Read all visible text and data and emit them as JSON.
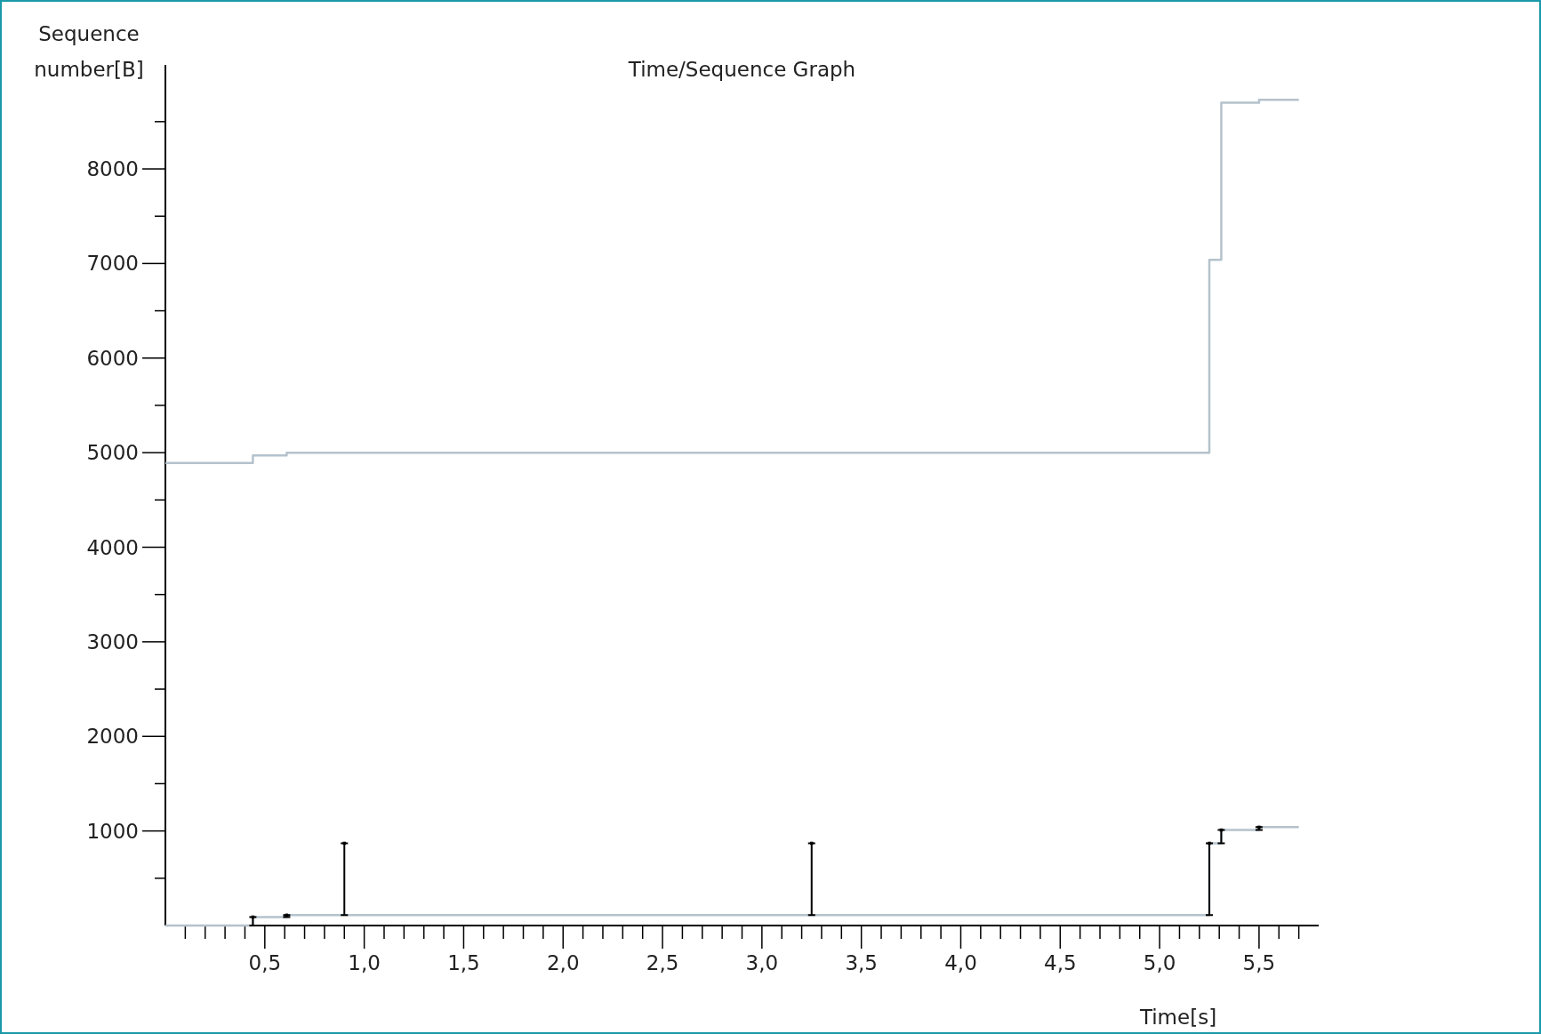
{
  "chart_data": {
    "type": "step",
    "title": "Time/Sequence Graph",
    "xlabel": "Time[s]",
    "ylabel": "Sequence number[B]",
    "xlim": [
      0,
      5.8
    ],
    "ylim": [
      0,
      9100
    ],
    "xticks": [
      {
        "value": 0.1,
        "label": null
      },
      {
        "value": 0.2,
        "label": null
      },
      {
        "value": 0.3,
        "label": null
      },
      {
        "value": 0.4,
        "label": null
      },
      {
        "value": 0.5,
        "label": "0,5"
      },
      {
        "value": 0.6,
        "label": null
      },
      {
        "value": 0.7,
        "label": null
      },
      {
        "value": 0.8,
        "label": null
      },
      {
        "value": 0.9,
        "label": null
      },
      {
        "value": 1.0,
        "label": "1,0"
      },
      {
        "value": 1.1,
        "label": null
      },
      {
        "value": 1.2,
        "label": null
      },
      {
        "value": 1.3,
        "label": null
      },
      {
        "value": 1.4,
        "label": null
      },
      {
        "value": 1.5,
        "label": "1,5"
      },
      {
        "value": 1.6,
        "label": null
      },
      {
        "value": 1.7,
        "label": null
      },
      {
        "value": 1.8,
        "label": null
      },
      {
        "value": 1.9,
        "label": null
      },
      {
        "value": 2.0,
        "label": "2,0"
      },
      {
        "value": 2.1,
        "label": null
      },
      {
        "value": 2.2,
        "label": null
      },
      {
        "value": 2.3,
        "label": null
      },
      {
        "value": 2.4,
        "label": null
      },
      {
        "value": 2.5,
        "label": "2,5"
      },
      {
        "value": 2.6,
        "label": null
      },
      {
        "value": 2.7,
        "label": null
      },
      {
        "value": 2.8,
        "label": null
      },
      {
        "value": 2.9,
        "label": null
      },
      {
        "value": 3.0,
        "label": "3,0"
      },
      {
        "value": 3.1,
        "label": null
      },
      {
        "value": 3.2,
        "label": null
      },
      {
        "value": 3.3,
        "label": null
      },
      {
        "value": 3.4,
        "label": null
      },
      {
        "value": 3.5,
        "label": "3,5"
      },
      {
        "value": 3.6,
        "label": null
      },
      {
        "value": 3.7,
        "label": null
      },
      {
        "value": 3.8,
        "label": null
      },
      {
        "value": 3.9,
        "label": null
      },
      {
        "value": 4.0,
        "label": "4,0"
      },
      {
        "value": 4.1,
        "label": null
      },
      {
        "value": 4.2,
        "label": null
      },
      {
        "value": 4.3,
        "label": null
      },
      {
        "value": 4.4,
        "label": null
      },
      {
        "value": 4.5,
        "label": "4,5"
      },
      {
        "value": 4.6,
        "label": null
      },
      {
        "value": 4.7,
        "label": null
      },
      {
        "value": 4.8,
        "label": null
      },
      {
        "value": 4.9,
        "label": null
      },
      {
        "value": 5.0,
        "label": "5,0"
      },
      {
        "value": 5.1,
        "label": null
      },
      {
        "value": 5.2,
        "label": null
      },
      {
        "value": 5.3,
        "label": null
      },
      {
        "value": 5.4,
        "label": null
      },
      {
        "value": 5.5,
        "label": "5,5"
      },
      {
        "value": 5.6,
        "label": null
      },
      {
        "value": 5.7,
        "label": null
      }
    ],
    "yticks": [
      {
        "value": 500,
        "label": null
      },
      1000,
      {
        "value": 1500,
        "label": null
      },
      2000,
      {
        "value": 2500,
        "label": null
      },
      3000,
      {
        "value": 3500,
        "label": null
      },
      4000,
      {
        "value": 4500,
        "label": null
      },
      5000,
      {
        "value": 5500,
        "label": null
      },
      6000,
      {
        "value": 6500,
        "label": null
      },
      7000,
      {
        "value": 7500,
        "label": null
      },
      8000,
      {
        "value": 8500,
        "label": null
      }
    ],
    "series": [
      {
        "color": "#b4c2cc",
        "x": [
          0,
          0.44,
          0.61,
          5.25,
          5.31,
          5.5,
          5.7
        ],
        "values": [
          4890,
          4970,
          5000,
          7040,
          8700,
          8730,
          8730
        ]
      },
      {
        "color": "#b4c2cc",
        "x": [
          0,
          0.44,
          0.61,
          5.25,
          5.31,
          5.5,
          5.7
        ],
        "values": [
          0,
          90,
          110,
          870,
          1010,
          1040,
          1040
        ]
      },
      {
        "type": "scatter",
        "color": "#000000",
        "marker": "square",
        "x": [
          0.44,
          0.61,
          0.9,
          3.25,
          5.25,
          5.31,
          5.5
        ],
        "values": [
          90,
          110,
          870,
          870,
          870,
          1010,
          1040
        ],
        "errors": [
          [
            0,
            90
          ],
          [
            90,
            110
          ],
          [
            110,
            870
          ],
          [
            110,
            870
          ],
          [
            110,
            870
          ],
          [
            870,
            1010
          ],
          [
            1010,
            1040
          ]
        ]
      }
    ]
  }
}
